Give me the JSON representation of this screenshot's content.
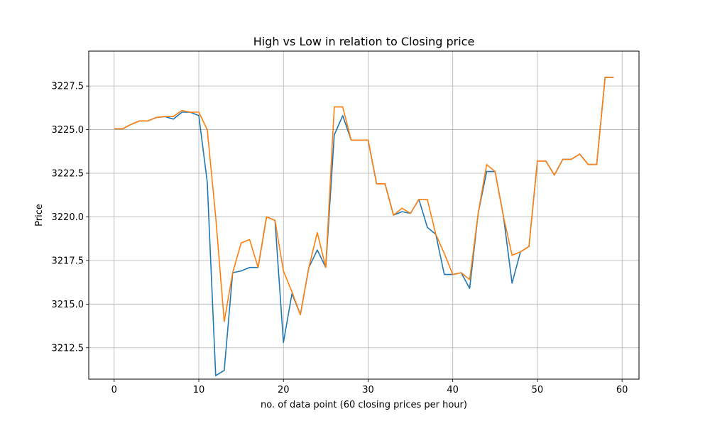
{
  "chart_data": {
    "type": "line",
    "title": "High vs Low in relation to Closing price",
    "xlabel": "no. of data point (60 closing prices per hour)",
    "ylabel": "Price",
    "xlim": [
      -3,
      62
    ],
    "ylim": [
      3210.7,
      3229.5
    ],
    "xticks": [
      0,
      10,
      20,
      30,
      40,
      50,
      60
    ],
    "yticks": [
      3212.5,
      3215.0,
      3217.5,
      3220.0,
      3222.5,
      3225.0,
      3227.5
    ],
    "ytick_labels": [
      "3212.5",
      "3215.0",
      "3217.5",
      "3220.0",
      "3222.5",
      "3225.0",
      "3227.5"
    ],
    "grid": true,
    "series": [
      {
        "color": "#1f77b4",
        "x": [
          0,
          1,
          2,
          3,
          4,
          5,
          6,
          7,
          8,
          9,
          10,
          11,
          12,
          13,
          14,
          15,
          16,
          17,
          18,
          19,
          20,
          21,
          22,
          23,
          24,
          25,
          26,
          27,
          28,
          29,
          30,
          31,
          32,
          33,
          34,
          35,
          36,
          37,
          38,
          39,
          40,
          41,
          42,
          43,
          44,
          45,
          46,
          47,
          48,
          49,
          50,
          51,
          52,
          53,
          54,
          55,
          56,
          57,
          58,
          59
        ],
        "values": [
          3225.05,
          3225.05,
          3225.3,
          3225.5,
          3225.5,
          3225.7,
          3225.75,
          3225.6,
          3226.0,
          3226.0,
          3225.8,
          3222.0,
          3210.9,
          3211.2,
          3216.8,
          3216.9,
          3217.1,
          3217.1,
          3220.0,
          3219.8,
          3212.8,
          3215.6,
          3214.4,
          3217.1,
          3218.1,
          3217.1,
          3224.7,
          3225.8,
          3224.4,
          3224.4,
          3224.4,
          3221.9,
          3221.9,
          3220.1,
          3220.3,
          3220.2,
          3221.0,
          3219.4,
          3219.0,
          3216.7,
          3216.7,
          3216.8,
          3215.9,
          3220.2,
          3222.6,
          3222.6,
          3220.0,
          3216.2,
          3218.0,
          3218.3,
          3223.2,
          3223.2,
          3222.4,
          3223.3,
          3223.3,
          3223.6,
          3223.0,
          3223.0,
          3228.0,
          3228.0
        ]
      },
      {
        "color": "#ff7f0e",
        "x": [
          0,
          1,
          2,
          3,
          4,
          5,
          6,
          7,
          8,
          9,
          10,
          11,
          12,
          13,
          14,
          15,
          16,
          17,
          18,
          19,
          20,
          21,
          22,
          23,
          24,
          25,
          26,
          27,
          28,
          29,
          30,
          31,
          32,
          33,
          34,
          35,
          36,
          37,
          38,
          39,
          40,
          41,
          42,
          43,
          44,
          45,
          46,
          47,
          48,
          49,
          50,
          51,
          52,
          53,
          54,
          55,
          56,
          57,
          58,
          59
        ],
        "values": [
          3225.05,
          3225.05,
          3225.3,
          3225.5,
          3225.5,
          3225.7,
          3225.75,
          3225.75,
          3226.1,
          3226.0,
          3226.0,
          3225.0,
          3220.0,
          3214.0,
          3216.8,
          3218.5,
          3218.7,
          3217.1,
          3220.0,
          3219.8,
          3216.9,
          3215.7,
          3214.4,
          3217.1,
          3219.1,
          3217.1,
          3226.3,
          3226.3,
          3224.4,
          3224.4,
          3224.4,
          3221.9,
          3221.9,
          3220.1,
          3220.5,
          3220.2,
          3221.0,
          3221.0,
          3219.0,
          3217.9,
          3216.7,
          3216.8,
          3216.4,
          3220.2,
          3223.0,
          3222.6,
          3220.0,
          3217.8,
          3218.0,
          3218.3,
          3223.2,
          3223.2,
          3222.4,
          3223.3,
          3223.3,
          3223.6,
          3223.0,
          3223.0,
          3228.0,
          3228.0
        ]
      }
    ]
  }
}
